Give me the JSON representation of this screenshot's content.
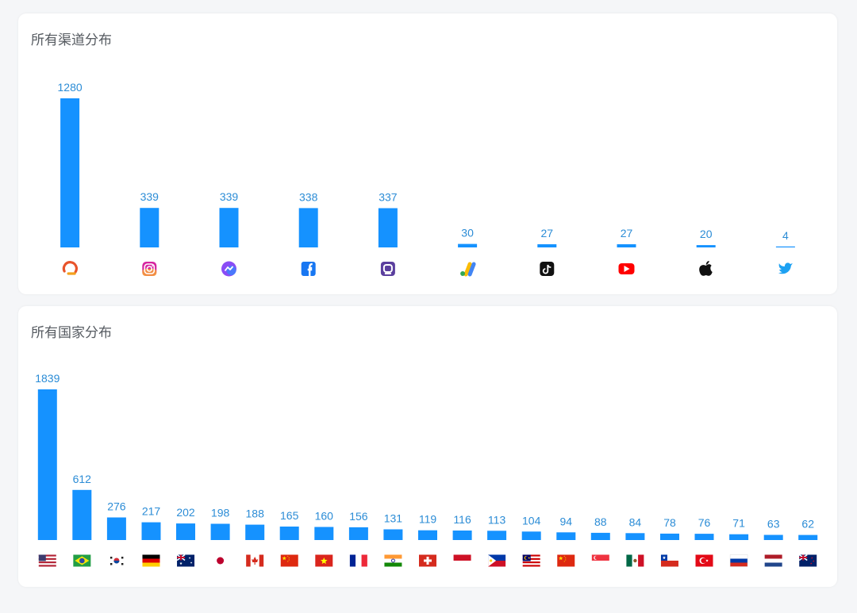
{
  "channels_card": {
    "title": "所有渠道分布"
  },
  "countries_card": {
    "title": "所有国家分布"
  },
  "colors": {
    "bar": "#1592ff",
    "label": "#2b8cd6",
    "card_bg": "#ffffff",
    "page_bg": "#f5f6f8"
  },
  "chart_data": [
    {
      "type": "bar",
      "title": "所有渠道分布",
      "categories": [
        "appsflyer",
        "instagram",
        "messenger",
        "facebook",
        "unknown-app",
        "google-ads",
        "tiktok",
        "youtube",
        "apple",
        "twitter"
      ],
      "category_icons": [
        "appsflyer-icon",
        "instagram-icon",
        "messenger-icon",
        "facebook-icon",
        "app-icon",
        "google-ads-icon",
        "tiktok-icon",
        "youtube-icon",
        "apple-icon",
        "twitter-icon"
      ],
      "values": [
        1280,
        339,
        339,
        338,
        337,
        30,
        27,
        27,
        20,
        4
      ],
      "ylim": [
        0,
        1280
      ],
      "grid": false,
      "legend": "none"
    },
    {
      "type": "bar",
      "title": "所有国家分布",
      "categories": [
        "US",
        "BR",
        "KR",
        "DE",
        "AU",
        "JP",
        "CA",
        "CN",
        "VN",
        "FR",
        "IN",
        "CH",
        "ID",
        "PH",
        "MY",
        "CN",
        "SG",
        "MX",
        "CL",
        "TR",
        "RU",
        "NL",
        "NZ"
      ],
      "category_icons": [
        "us-flag-icon",
        "br-flag-icon",
        "kr-flag-icon",
        "de-flag-icon",
        "au-flag-icon",
        "jp-flag-icon",
        "ca-flag-icon",
        "cn-flag-icon",
        "vn-flag-icon",
        "fr-flag-icon",
        "in-flag-icon",
        "ch-flag-icon",
        "id-flag-icon",
        "ph-flag-icon",
        "my-flag-icon",
        "cn-flag-icon",
        "sg-flag-icon",
        "mx-flag-icon",
        "cl-flag-icon",
        "tr-flag-icon",
        "ru-flag-icon",
        "nl-flag-icon",
        "nz-flag-icon"
      ],
      "values": [
        1839,
        612,
        276,
        217,
        202,
        198,
        188,
        165,
        160,
        156,
        131,
        119,
        116,
        113,
        104,
        94,
        88,
        84,
        78,
        76,
        71,
        63,
        62
      ],
      "ylim": [
        0,
        1839
      ],
      "grid": false,
      "legend": "none"
    }
  ]
}
